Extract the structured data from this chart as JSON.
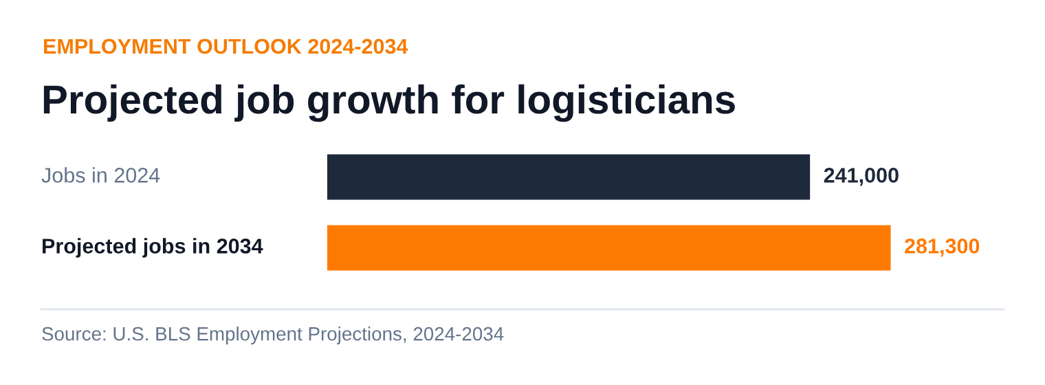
{
  "chart_data": {
    "type": "bar",
    "orientation": "horizontal",
    "subtitle": "EMPLOYMENT OUTLOOK 2024-2034",
    "title": "Projected job growth for logisticians",
    "categories": [
      "Jobs in 2024",
      "Projected jobs in 2034"
    ],
    "values": [
      241000,
      281300
    ],
    "colors": [
      "#1e293b",
      "#ff7a00"
    ],
    "value_labels": [
      "241,000",
      "281,300"
    ],
    "annotations": [
      "Source: U.S. BLS Employment Projections, 2024-2034"
    ]
  }
}
